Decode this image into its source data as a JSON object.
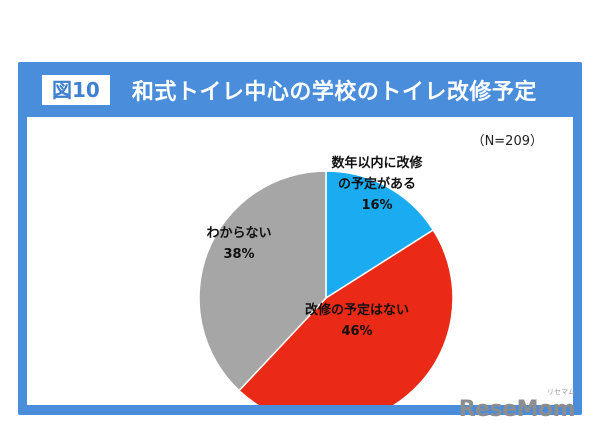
{
  "figure_badge": "図10",
  "title": "和式トイレ中心の学校のトイレ改修予定",
  "sample_note": "（N=209）",
  "watermark": "ReseMom",
  "watermark_sub": "リセマム",
  "chart_data": {
    "type": "pie",
    "title": "和式トイレ中心の学校のトイレ改修予定",
    "slices": [
      {
        "label_lines": [
          "数年以内に改修",
          "の予定がある"
        ],
        "pct_text": "16%",
        "value": 16,
        "color": "#1aabf0"
      },
      {
        "label_lines": [
          "改修の予定はない"
        ],
        "pct_text": "46%",
        "value": 46,
        "color": "#ea2a16"
      },
      {
        "label_lines": [
          "わからない"
        ],
        "pct_text": "38%",
        "value": 38,
        "color": "#a6a6a6"
      }
    ]
  }
}
